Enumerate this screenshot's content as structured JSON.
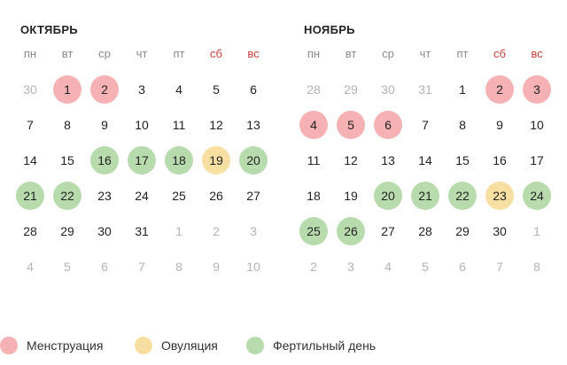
{
  "colors": {
    "menstruation": "#f5b1b3",
    "ovulation": "#f7dfa2",
    "fertile": "#b8dbad",
    "weekend_text": "#c9403a",
    "other_month_text": "#b3b3b3"
  },
  "weekdays": [
    "пн",
    "вт",
    "ср",
    "чт",
    "пт",
    "сб",
    "вс"
  ],
  "months": [
    {
      "title": "ОКТЯБРЬ",
      "weeks": [
        [
          {
            "d": "30",
            "other": true
          },
          {
            "d": "1",
            "mark": "menstruation"
          },
          {
            "d": "2",
            "mark": "menstruation"
          },
          {
            "d": "3"
          },
          {
            "d": "4"
          },
          {
            "d": "5"
          },
          {
            "d": "6"
          }
        ],
        [
          {
            "d": "7"
          },
          {
            "d": "8"
          },
          {
            "d": "9"
          },
          {
            "d": "10"
          },
          {
            "d": "11"
          },
          {
            "d": "12"
          },
          {
            "d": "13"
          }
        ],
        [
          {
            "d": "14"
          },
          {
            "d": "15"
          },
          {
            "d": "16",
            "mark": "fertile"
          },
          {
            "d": "17",
            "mark": "fertile"
          },
          {
            "d": "18",
            "mark": "fertile"
          },
          {
            "d": "19",
            "mark": "ovulation"
          },
          {
            "d": "20",
            "mark": "fertile"
          }
        ],
        [
          {
            "d": "21",
            "mark": "fertile"
          },
          {
            "d": "22",
            "mark": "fertile"
          },
          {
            "d": "23"
          },
          {
            "d": "24"
          },
          {
            "d": "25"
          },
          {
            "d": "26"
          },
          {
            "d": "27"
          }
        ],
        [
          {
            "d": "28"
          },
          {
            "d": "29"
          },
          {
            "d": "30"
          },
          {
            "d": "31"
          },
          {
            "d": "1",
            "other": true
          },
          {
            "d": "2",
            "other": true
          },
          {
            "d": "3",
            "other": true
          }
        ],
        [
          {
            "d": "4",
            "other": true
          },
          {
            "d": "5",
            "other": true
          },
          {
            "d": "6",
            "other": true
          },
          {
            "d": "7",
            "other": true
          },
          {
            "d": "8",
            "other": true
          },
          {
            "d": "9",
            "other": true
          },
          {
            "d": "10",
            "other": true
          }
        ]
      ]
    },
    {
      "title": "НОЯБРЬ",
      "weeks": [
        [
          {
            "d": "28",
            "other": true
          },
          {
            "d": "29",
            "other": true
          },
          {
            "d": "30",
            "other": true
          },
          {
            "d": "31",
            "other": true
          },
          {
            "d": "1"
          },
          {
            "d": "2",
            "mark": "menstruation"
          },
          {
            "d": "3",
            "mark": "menstruation"
          }
        ],
        [
          {
            "d": "4",
            "mark": "menstruation"
          },
          {
            "d": "5",
            "mark": "menstruation"
          },
          {
            "d": "6",
            "mark": "menstruation"
          },
          {
            "d": "7"
          },
          {
            "d": "8"
          },
          {
            "d": "9"
          },
          {
            "d": "10"
          }
        ],
        [
          {
            "d": "11"
          },
          {
            "d": "12"
          },
          {
            "d": "13"
          },
          {
            "d": "14"
          },
          {
            "d": "15"
          },
          {
            "d": "16"
          },
          {
            "d": "17"
          }
        ],
        [
          {
            "d": "18"
          },
          {
            "d": "19"
          },
          {
            "d": "20",
            "mark": "fertile"
          },
          {
            "d": "21",
            "mark": "fertile"
          },
          {
            "d": "22",
            "mark": "fertile"
          },
          {
            "d": "23",
            "mark": "ovulation"
          },
          {
            "d": "24",
            "mark": "fertile"
          }
        ],
        [
          {
            "d": "25",
            "mark": "fertile"
          },
          {
            "d": "26",
            "mark": "fertile"
          },
          {
            "d": "27"
          },
          {
            "d": "28"
          },
          {
            "d": "29"
          },
          {
            "d": "30"
          },
          {
            "d": "1",
            "other": true
          }
        ],
        [
          {
            "d": "2",
            "other": true
          },
          {
            "d": "3",
            "other": true
          },
          {
            "d": "4",
            "other": true
          },
          {
            "d": "5",
            "other": true
          },
          {
            "d": "6",
            "other": true
          },
          {
            "d": "7",
            "other": true
          },
          {
            "d": "8",
            "other": true
          }
        ]
      ]
    }
  ],
  "legend": [
    {
      "key": "menstruation",
      "label": "Менструация"
    },
    {
      "key": "ovulation",
      "label": "Овуляция"
    },
    {
      "key": "fertile",
      "label": "Фертильный день"
    }
  ]
}
